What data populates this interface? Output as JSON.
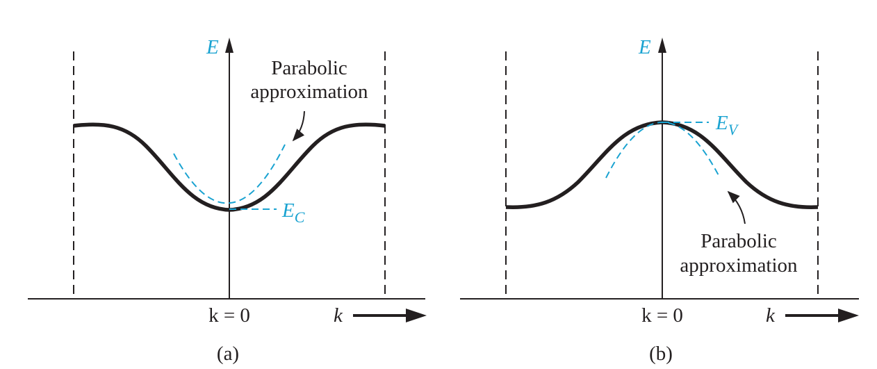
{
  "colors": {
    "ink": "#231f20",
    "accent": "#1aa3d1"
  },
  "panels": [
    {
      "id": "a",
      "caption": "(a)",
      "axis_label": "E",
      "x_axis_label": "k",
      "origin_label": "k = 0",
      "level_label": "E",
      "level_subscript": "C",
      "annotation_line1": "Parabolic",
      "annotation_line2": "approximation"
    },
    {
      "id": "b",
      "caption": "(b)",
      "axis_label": "E",
      "x_axis_label": "k",
      "origin_label": "k = 0",
      "level_label": "E",
      "level_subscript": "V",
      "annotation_line1": "Parabolic",
      "annotation_line2": "approximation"
    }
  ]
}
